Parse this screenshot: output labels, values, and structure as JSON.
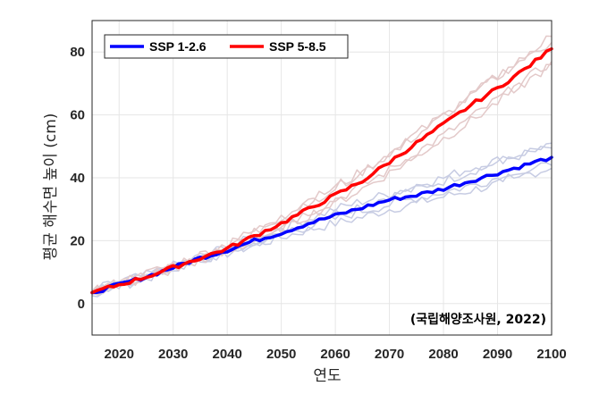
{
  "chart_data": {
    "type": "line",
    "xlabel": "연도",
    "ylabel": "평균 해수면 높이 (cm)",
    "xlim": [
      2015,
      2100
    ],
    "ylim": [
      -10,
      90
    ],
    "xticks": [
      2020,
      2030,
      2040,
      2050,
      2060,
      2070,
      2080,
      2090,
      2100
    ],
    "yticks": [
      0,
      20,
      40,
      60,
      80
    ],
    "grid": true,
    "legend_position": "top-left",
    "annotation": "(국립해양조사원, 2022)",
    "x": [
      2015,
      2020,
      2025,
      2030,
      2035,
      2040,
      2045,
      2050,
      2055,
      2060,
      2065,
      2070,
      2075,
      2080,
      2085,
      2090,
      2095,
      2100
    ],
    "series": [
      {
        "name": "SSP 1-2.6",
        "color": "#0000ff",
        "values": [
          3.5,
          6,
          8.5,
          11.5,
          14.5,
          17,
          20,
          22.5,
          25.5,
          28,
          30.5,
          33,
          34.5,
          36.5,
          39,
          41.5,
          44,
          46.5
        ],
        "ensemble_color": "#c7cce3",
        "ensemble": [
          [
            3,
            6.5,
            9,
            12,
            14,
            16,
            18.5,
            21,
            23.5,
            25.5,
            27.5,
            30,
            32,
            34,
            36,
            38,
            41,
            43
          ],
          [
            2.5,
            5.5,
            8,
            11,
            14,
            17,
            20,
            23,
            26,
            29,
            31.5,
            34,
            36.5,
            39,
            42,
            45,
            47.5,
            49.5
          ],
          [
            4,
            7,
            9,
            12,
            15,
            18,
            21,
            24,
            27,
            30,
            32.5,
            35,
            37.5,
            40,
            43,
            45.5,
            48,
            51
          ],
          [
            3.5,
            6,
            8.5,
            11,
            13.5,
            16,
            19,
            22,
            24.5,
            27,
            29.5,
            31.5,
            33.5,
            35.5,
            37.5,
            40,
            42,
            44
          ]
        ]
      },
      {
        "name": "SSP 5-8.5",
        "color": "#ff0000",
        "values": [
          3.5,
          6,
          8.5,
          11.5,
          14.5,
          17.5,
          21.5,
          25.5,
          30,
          34.5,
          39,
          45,
          51,
          57,
          63,
          68.5,
          74.5,
          81
        ],
        "ensemble_color": "#e3c9c9",
        "ensemble": [
          [
            3,
            6.5,
            9,
            12,
            15,
            18.5,
            22.5,
            27,
            32,
            37,
            42,
            48,
            54,
            60,
            66,
            72,
            78.5,
            85
          ],
          [
            4,
            6,
            8,
            11,
            14,
            17,
            21,
            25,
            29,
            33,
            37.5,
            42.5,
            48,
            53.5,
            59,
            65,
            71,
            77
          ],
          [
            3,
            7,
            9.5,
            12.5,
            15.5,
            19,
            23,
            27.5,
            32.5,
            37,
            42,
            47.5,
            53.5,
            59.5,
            66,
            72.5,
            78,
            83
          ],
          [
            3.5,
            5.5,
            8,
            10.5,
            14,
            16.5,
            20,
            24,
            28,
            32,
            36.5,
            41.5,
            47,
            52.5,
            58,
            64,
            70,
            76
          ]
        ]
      }
    ]
  }
}
